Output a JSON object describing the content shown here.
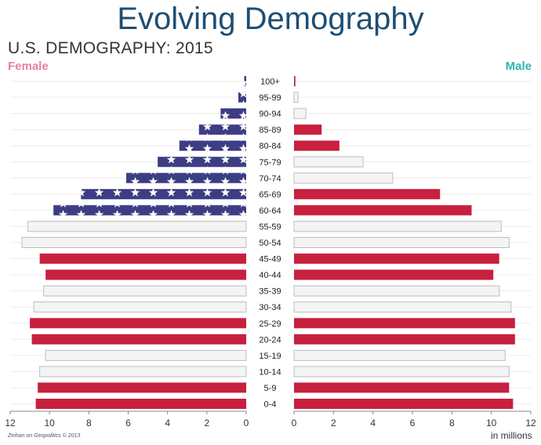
{
  "title": "Evolving Demography",
  "subtitle": "U.S. DEMOGRAPHY: 2015",
  "female_label": "Female",
  "male_label": "Male",
  "credit": "Zeihan on Geopolitics © 2013",
  "units_label": "in millions",
  "colors": {
    "red": "#c8203f",
    "blue": "#3d3d84",
    "white_bar": "#f4f4f4",
    "bar_outline": "#bdbdbd",
    "star": "#ffffff",
    "female": "#e77fa5",
    "male": "#2fb3b3"
  },
  "chart_data": {
    "type": "bar",
    "title": "U.S. DEMOGRAPHY: 2015",
    "xlabel": "in millions",
    "xlim": [
      0,
      12
    ],
    "x_ticks_female": [
      "12",
      "10",
      "8",
      "6",
      "4",
      "2",
      "0"
    ],
    "x_ticks_male": [
      "0",
      "2",
      "4",
      "6",
      "8",
      "10",
      "12"
    ],
    "categories": [
      "100+",
      "95-99",
      "90-94",
      "85-89",
      "80-84",
      "75-79",
      "70-74",
      "65-69",
      "60-64",
      "55-59",
      "50-54",
      "45-49",
      "40-44",
      "35-39",
      "30-34",
      "25-29",
      "20-24",
      "15-19",
      "10-14",
      "5-9",
      "0-4"
    ],
    "series": [
      {
        "name": "Female",
        "values": [
          0.1,
          0.4,
          1.3,
          2.4,
          3.4,
          4.5,
          6.1,
          8.4,
          9.8,
          11.1,
          11.4,
          10.5,
          10.2,
          10.3,
          10.8,
          11.0,
          10.9,
          10.2,
          10.5,
          10.6,
          10.7
        ],
        "styles": [
          "blue",
          "blue",
          "blue",
          "blue",
          "blue",
          "blue",
          "blue",
          "blue",
          "blue",
          "white",
          "white",
          "red",
          "red",
          "white",
          "white",
          "red",
          "red",
          "white",
          "white",
          "red",
          "red"
        ]
      },
      {
        "name": "Male",
        "values": [
          0.07,
          0.2,
          0.6,
          1.4,
          2.3,
          3.5,
          5.0,
          7.4,
          9.0,
          10.5,
          10.9,
          10.4,
          10.1,
          10.4,
          11.0,
          11.2,
          11.2,
          10.7,
          10.9,
          10.9,
          11.1
        ],
        "styles": [
          "red",
          "white",
          "white",
          "red",
          "red",
          "white",
          "white",
          "red",
          "red",
          "white",
          "white",
          "red",
          "red",
          "white",
          "white",
          "red",
          "red",
          "white",
          "white",
          "red",
          "red"
        ]
      }
    ]
  }
}
